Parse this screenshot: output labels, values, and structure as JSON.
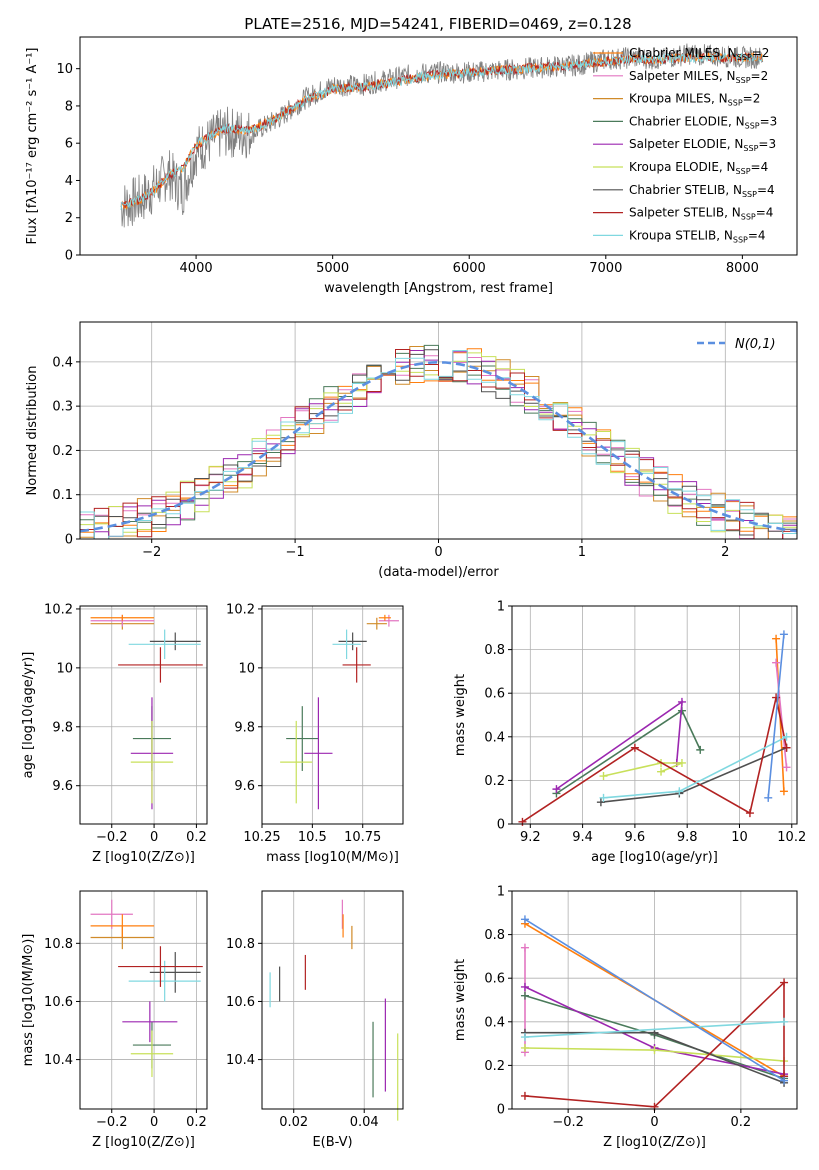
{
  "figure_title": "PLATE=2516, MJD=54241, FIBERID=0469, z=0.128",
  "colors": [
    "#ff7f0e",
    "#e377c2",
    "#d08b2a",
    "#4a7a5a",
    "#9b27b0",
    "#c8e05a",
    "#505050",
    "#b22222",
    "#80d8e0"
  ],
  "chart_data": [
    {
      "id": "spectrum",
      "type": "line",
      "title": "PLATE=2516, MJD=54241, FIBERID=0469, z=0.128",
      "xlabel": "wavelength [Angstrom, rest frame]",
      "ylabel": "Flux [fλ10⁻¹⁷ erg cm⁻² s⁻¹ A⁻¹]",
      "xlim": [
        3150,
        8400
      ],
      "ylim": [
        0,
        11.7
      ],
      "xticks": [
        4000,
        5000,
        6000,
        7000,
        8000
      ],
      "yticks": [
        0,
        2,
        4,
        6,
        8,
        10
      ],
      "x": [
        3450,
        3600,
        3700,
        3800,
        3900,
        4000,
        4200,
        4400,
        4600,
        4800,
        5000,
        5200,
        5400,
        5600,
        5800,
        6000,
        6200,
        6400,
        6600,
        6800,
        7000,
        7200,
        7400,
        7600,
        7800,
        8000,
        8150
      ],
      "data_flux": [
        2.6,
        3.0,
        3.6,
        4.4,
        3.4,
        5.6,
        6.6,
        6.5,
        7.3,
        8.4,
        9.1,
        9.1,
        9.4,
        9.7,
        9.8,
        9.8,
        9.9,
        10.0,
        10.1,
        10.2,
        10.5,
        10.6,
        10.5,
        10.8,
        10.7,
        10.6,
        10.6
      ],
      "model_flux": [
        2.6,
        3.0,
        3.5,
        4.3,
        4.6,
        5.9,
        6.8,
        6.7,
        7.4,
        8.3,
        8.9,
        9.0,
        9.2,
        9.5,
        9.7,
        9.8,
        9.9,
        10.0,
        10.1,
        10.2,
        10.4,
        10.5,
        10.5,
        10.6,
        10.6,
        10.6,
        10.6
      ],
      "legend": [
        "Chabrier MILES, N_SSP=2",
        "Salpeter MILES, N_SSP=2",
        "Kroupa MILES, N_SSP=2",
        "Chabrier ELODIE, N_SSP=3",
        "Salpeter ELODIE, N_SSP=3",
        "Kroupa ELODIE, N_SSP=4",
        "Chabrier STELIB, N_SSP=4",
        "Salpeter STELIB, N_SSP=4",
        "Kroupa STELIB, N_SSP=4"
      ],
      "legend_placement": "upper-right"
    },
    {
      "id": "residuals",
      "type": "histogram",
      "xlabel": "(data-model)/error",
      "ylabel": "Normed distribution",
      "xlim": [
        -2.5,
        2.5
      ],
      "ylim": [
        0,
        0.49
      ],
      "xticks": [
        -2,
        -1,
        0,
        1,
        2
      ],
      "yticks": [
        0.0,
        0.1,
        0.2,
        0.3,
        0.4
      ],
      "bin_width": 0.1,
      "grid": true,
      "legend": [
        "N(0,1)"
      ],
      "legend_placement": "upper-right"
    },
    {
      "id": "age-vs-Z",
      "type": "errorbar",
      "xlabel": "Z [log10(Z/Z⊙)]",
      "ylabel": "age  [log10(age/yr)]",
      "xlim": [
        -0.35,
        0.25
      ],
      "ylim": [
        9.47,
        10.21
      ],
      "xticks": [
        -0.2,
        0.0,
        0.2
      ],
      "yticks": [
        9.6,
        9.8,
        10.0,
        10.2
      ],
      "grid": true,
      "points": [
        {
          "x": -0.15,
          "xerr": 0.15,
          "y": 10.15,
          "yerr": 0.02,
          "c": 2
        },
        {
          "x": -0.15,
          "xerr": 0.15,
          "y": 10.16,
          "yerr": 0.02,
          "c": 1
        },
        {
          "x": -0.15,
          "xerr": 0.15,
          "y": 10.17,
          "yerr": 0.01,
          "c": 0
        },
        {
          "x": 0.1,
          "xerr": 0.12,
          "y": 10.09,
          "yerr": 0.03,
          "c": 6
        },
        {
          "x": 0.05,
          "xerr": 0.17,
          "y": 10.08,
          "yerr": 0.05,
          "c": 8
        },
        {
          "x": 0.03,
          "xerr": 0.2,
          "y": 10.01,
          "yerr": 0.06,
          "c": 7
        },
        {
          "x": -0.01,
          "xerr": 0.09,
          "y": 9.76,
          "yerr": 0.11,
          "c": 3
        },
        {
          "x": -0.01,
          "xerr": 0.1,
          "y": 9.71,
          "yerr": 0.19,
          "c": 4
        },
        {
          "x": -0.01,
          "xerr": 0.1,
          "y": 9.68,
          "yerr": 0.14,
          "c": 5
        }
      ]
    },
    {
      "id": "age-vs-mass",
      "type": "errorbar",
      "xlabel": "mass [log10(M/M⊙)]",
      "ylabel": "",
      "xlim": [
        10.25,
        10.95
      ],
      "ylim": [
        9.47,
        10.21
      ],
      "xticks": [
        10.25,
        10.5,
        10.75
      ],
      "yticks": [
        9.6,
        9.8,
        10.0,
        10.2
      ],
      "grid": true,
      "points": [
        {
          "x": 10.82,
          "xerr": 0.05,
          "y": 10.15,
          "yerr": 0.02,
          "c": 2
        },
        {
          "x": 10.88,
          "xerr": 0.05,
          "y": 10.16,
          "yerr": 0.02,
          "c": 1
        },
        {
          "x": 10.86,
          "xerr": 0.03,
          "y": 10.17,
          "yerr": 0.01,
          "c": 0
        },
        {
          "x": 10.7,
          "xerr": 0.07,
          "y": 10.09,
          "yerr": 0.03,
          "c": 6
        },
        {
          "x": 10.67,
          "xerr": 0.07,
          "y": 10.08,
          "yerr": 0.05,
          "c": 8
        },
        {
          "x": 10.72,
          "xerr": 0.07,
          "y": 10.01,
          "yerr": 0.06,
          "c": 7
        },
        {
          "x": 10.45,
          "xerr": 0.08,
          "y": 9.76,
          "yerr": 0.11,
          "c": 3
        },
        {
          "x": 10.53,
          "xerr": 0.07,
          "y": 9.71,
          "yerr": 0.19,
          "c": 4
        },
        {
          "x": 10.42,
          "xerr": 0.08,
          "y": 9.68,
          "yerr": 0.14,
          "c": 5
        }
      ]
    },
    {
      "id": "weight-vs-age",
      "type": "line",
      "xlabel": "age  [log10(age/yr)]",
      "ylabel": "mass weight",
      "xlim": [
        9.13,
        10.22
      ],
      "ylim": [
        0,
        1.0
      ],
      "xticks": [
        9.2,
        9.4,
        9.6,
        9.8,
        10.0,
        10.2
      ],
      "yticks": [
        0.0,
        0.2,
        0.4,
        0.6,
        0.8,
        1.0
      ],
      "grid": true,
      "series": [
        {
          "c": 0,
          "x": [
            10.17,
            10.14
          ],
          "y": [
            0.15,
            0.85
          ]
        },
        {
          "c": 1,
          "x": [
            10.14,
            10.18
          ],
          "y": [
            0.74,
            0.26
          ]
        },
        {
          "c": 3,
          "x": [
            9.3,
            9.78,
            9.85
          ],
          "y": [
            0.14,
            0.52,
            0.34
          ]
        },
        {
          "c": 4,
          "x": [
            9.3,
            9.78,
            9.76
          ],
          "y": [
            0.16,
            0.56,
            0.28
          ]
        },
        {
          "c": 5,
          "x": [
            9.48,
            9.7,
            9.78,
            9.7
          ],
          "y": [
            0.22,
            0.28,
            0.28,
            0.24
          ]
        },
        {
          "c": 6,
          "x": [
            9.47,
            9.77,
            10.18
          ],
          "y": [
            0.1,
            0.14,
            0.35
          ]
        },
        {
          "c": 7,
          "x": [
            9.17,
            9.6,
            10.04,
            10.14,
            10.18
          ],
          "y": [
            0.01,
            0.35,
            0.05,
            0.58,
            0.35
          ]
        },
        {
          "c": 8,
          "x": [
            9.48,
            9.77,
            10.18
          ],
          "y": [
            0.12,
            0.15,
            0.4
          ]
        },
        {
          "c": 9,
          "x": [
            10.11,
            10.17
          ],
          "y": [
            0.12,
            0.87
          ]
        }
      ]
    },
    {
      "id": "mass-vs-Z",
      "type": "errorbar",
      "xlabel": "Z [log10(Z/Z⊙)]",
      "ylabel": "mass [log10(M/M⊙)]",
      "xlim": [
        -0.35,
        0.25
      ],
      "ylim": [
        10.23,
        10.98
      ],
      "xticks": [
        -0.2,
        0.0,
        0.2
      ],
      "yticks": [
        10.4,
        10.6,
        10.8
      ],
      "grid": true,
      "points": [
        {
          "x": -0.15,
          "xerr": 0.15,
          "y": 10.82,
          "yerr": 0.04,
          "c": 2
        },
        {
          "x": -0.2,
          "xerr": 0.1,
          "y": 10.9,
          "yerr": 0.05,
          "c": 1
        },
        {
          "x": -0.15,
          "xerr": 0.15,
          "y": 10.86,
          "yerr": 0.04,
          "c": 0
        },
        {
          "x": 0.1,
          "xerr": 0.12,
          "y": 10.7,
          "yerr": 0.07,
          "c": 6
        },
        {
          "x": 0.05,
          "xerr": 0.17,
          "y": 10.67,
          "yerr": 0.07,
          "c": 8
        },
        {
          "x": 0.03,
          "xerr": 0.2,
          "y": 10.72,
          "yerr": 0.07,
          "c": 7
        },
        {
          "x": -0.01,
          "xerr": 0.09,
          "y": 10.45,
          "yerr": 0.08,
          "c": 3
        },
        {
          "x": -0.02,
          "xerr": 0.13,
          "y": 10.53,
          "yerr": 0.07,
          "c": 4
        },
        {
          "x": -0.01,
          "xerr": 0.1,
          "y": 10.42,
          "yerr": 0.08,
          "c": 5
        }
      ]
    },
    {
      "id": "mass-vs-EBV",
      "type": "errorbar",
      "xlabel": "E(B-V)",
      "ylabel": "",
      "xlim": [
        0.011,
        0.051
      ],
      "ylim": [
        10.23,
        10.98
      ],
      "xticks": [
        0.02,
        0.04
      ],
      "yticks": [
        10.4,
        10.6,
        10.8
      ],
      "grid": true,
      "points": [
        {
          "x": 0.0365,
          "y": 10.82,
          "yerr": 0.04,
          "c": 2
        },
        {
          "x": 0.0338,
          "y": 10.9,
          "yerr": 0.05,
          "c": 1
        },
        {
          "x": 0.034,
          "y": 10.86,
          "yerr": 0.04,
          "c": 0
        },
        {
          "x": 0.016,
          "y": 10.66,
          "yerr": 0.06,
          "c": 6
        },
        {
          "x": 0.0133,
          "y": 10.64,
          "yerr": 0.06,
          "c": 8
        },
        {
          "x": 0.0233,
          "y": 10.7,
          "yerr": 0.06,
          "c": 7
        },
        {
          "x": 0.0425,
          "y": 10.4,
          "yerr": 0.13,
          "c": 3
        },
        {
          "x": 0.046,
          "y": 10.45,
          "yerr": 0.16,
          "c": 4
        },
        {
          "x": 0.0495,
          "y": 10.34,
          "yerr": 0.15,
          "c": 5
        }
      ]
    },
    {
      "id": "weight-vs-Z",
      "type": "line",
      "xlabel": "Z [log10(Z/Z⊙)]",
      "ylabel": "mass weight",
      "xlim": [
        -0.33,
        0.33
      ],
      "ylim": [
        0,
        1.0
      ],
      "xticks": [
        -0.2,
        0.0,
        0.2
      ],
      "yticks": [
        0.0,
        0.2,
        0.4,
        0.6,
        0.8,
        1.0
      ],
      "grid": true,
      "series": [
        {
          "c": 0,
          "x": [
            -0.3,
            0.3
          ],
          "y": [
            0.85,
            0.15
          ]
        },
        {
          "c": 1,
          "x": [
            -0.3,
            -0.3
          ],
          "y": [
            0.74,
            0.26
          ]
        },
        {
          "c": 3,
          "x": [
            -0.3,
            0.0,
            0.3
          ],
          "y": [
            0.52,
            0.34,
            0.14
          ]
        },
        {
          "c": 4,
          "x": [
            -0.3,
            0.0,
            0.3
          ],
          "y": [
            0.56,
            0.28,
            0.16
          ]
        },
        {
          "c": 5,
          "x": [
            -0.3,
            0.0,
            0.3
          ],
          "y": [
            0.28,
            0.27,
            0.22
          ]
        },
        {
          "c": 6,
          "x": [
            -0.3,
            0.0,
            0.3
          ],
          "y": [
            0.35,
            0.35,
            0.12
          ]
        },
        {
          "c": 7,
          "x": [
            -0.3,
            0.0,
            0.3,
            0.3
          ],
          "y": [
            0.06,
            0.01,
            0.58,
            0.15
          ]
        },
        {
          "c": 8,
          "x": [
            -0.3,
            0.3
          ],
          "y": [
            0.33,
            0.4
          ]
        },
        {
          "c": 9,
          "x": [
            -0.3,
            0.3
          ],
          "y": [
            0.87,
            0.13
          ]
        }
      ]
    }
  ]
}
